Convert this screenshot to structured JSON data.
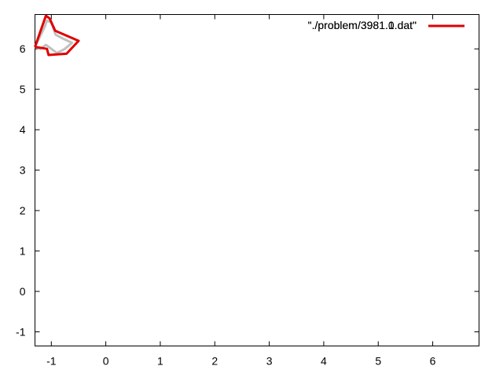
{
  "chart_data": {
    "type": "line",
    "title": "",
    "xlabel": "",
    "ylabel": "",
    "xlim": [
      -1.3,
      6.85
    ],
    "ylim": [
      -1.35,
      6.85
    ],
    "xticks": [
      -1,
      0,
      1,
      2,
      3,
      4,
      5,
      6
    ],
    "yticks": [
      -1,
      0,
      1,
      2,
      3,
      4,
      5,
      6
    ],
    "grid": false,
    "legend_position": "top-right",
    "series": [
      {
        "name": "\"./problem/3981.1.dat\"",
        "color": "#c0c0c0",
        "x": [
          -1.3,
          -1.12,
          -1.08,
          -1.0,
          -0.92,
          -0.78,
          -0.62,
          -0.75,
          -0.82,
          -0.9,
          -1.0,
          -1.1,
          -1.2,
          -1.3
        ],
        "y": [
          6.05,
          6.55,
          6.7,
          6.65,
          6.35,
          6.25,
          6.15,
          6.0,
          5.95,
          5.9,
          6.0,
          6.1,
          6.0,
          6.05
        ]
      },
      {
        "name": "\"./problem/3981.0.dat\"",
        "color": "#e00000",
        "x": [
          -1.3,
          -1.1,
          -1.03,
          -0.93,
          -0.5,
          -0.72,
          -1.05,
          -1.08,
          -1.3
        ],
        "y": [
          6.05,
          6.82,
          6.75,
          6.45,
          6.2,
          5.88,
          5.85,
          6.0,
          6.05
        ]
      }
    ]
  }
}
